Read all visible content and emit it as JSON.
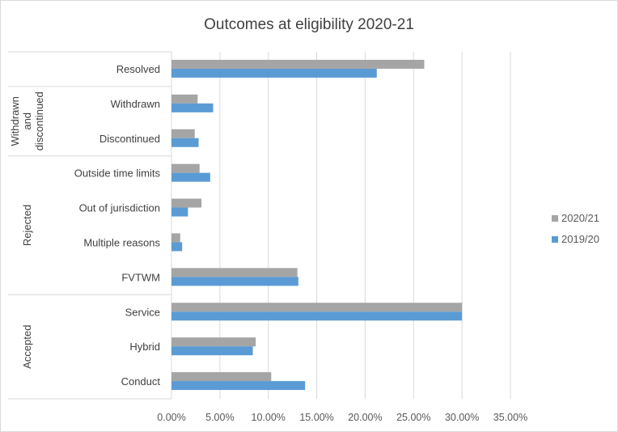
{
  "chart_data": {
    "type": "bar",
    "orientation": "horizontal",
    "title": "Outcomes at eligibility 2020-21",
    "categories": [
      "Resolved",
      "Withdrawn",
      "Discontinued",
      "Outside time limits",
      "Out of jurisdiction",
      "Multiple reasons",
      "FVTWM",
      "Service",
      "Hybrid",
      "Conduct"
    ],
    "groups": [
      {
        "label": "",
        "categories": [
          "Resolved"
        ]
      },
      {
        "label": "Withdrawn and discontinued",
        "label_lines": [
          "Withdrawn",
          "and",
          "discontinued"
        ],
        "categories": [
          "Withdrawn",
          "Discontinued"
        ]
      },
      {
        "label": "Rejected",
        "label_lines": [
          "Rejected"
        ],
        "categories": [
          "Outside time limits",
          "Out of jurisdiction",
          "Multiple reasons",
          "FVTWM"
        ]
      },
      {
        "label": "Accepted",
        "label_lines": [
          "Accepted"
        ],
        "categories": [
          "Service",
          "Hybrid",
          "Conduct"
        ]
      }
    ],
    "series": [
      {
        "name": "2020/21",
        "color": "#a5a5a5",
        "values": [
          0.261,
          0.027,
          0.024,
          0.029,
          0.031,
          0.009,
          0.13,
          0.3,
          0.087,
          0.103
        ]
      },
      {
        "name": "2019/20",
        "color": "#5b9bd5",
        "values": [
          0.212,
          0.043,
          0.028,
          0.04,
          0.017,
          0.011,
          0.131,
          0.3,
          0.084,
          0.138
        ]
      }
    ],
    "xlim": [
      0,
      0.35
    ],
    "x_ticks": [
      "0.00%",
      "5.00%",
      "10.00%",
      "15.00%",
      "20.00%",
      "25.00%",
      "30.00%",
      "35.00%"
    ],
    "xlabel": "",
    "ylabel": "",
    "grid": "vertical",
    "legend_position": "right"
  }
}
